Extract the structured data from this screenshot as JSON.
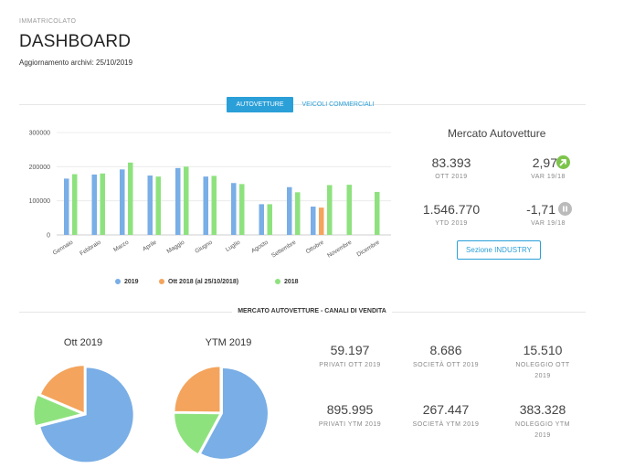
{
  "header": {
    "eyebrow": "IMMATRICOLATO",
    "title": "DASHBOARD",
    "update": "Aggiornamento archivi: 25/10/2019"
  },
  "tabs": {
    "active": "AUTOVETTURE",
    "inactive": "VEICOLI COMMERCIALI"
  },
  "colors": {
    "s2019": "#79aee6",
    "sOtt2018": "#f4a45c",
    "s2018": "#8ee27e",
    "accent": "#2a9fd8",
    "up_icon": "#7dc44a",
    "pause_icon": "#bbbbbb"
  },
  "chart_data": {
    "type": "bar",
    "categories": [
      "Gennaio",
      "Febbraio",
      "Marzo",
      "Aprile",
      "Maggio",
      "Giugno",
      "Luglio",
      "Agosto",
      "Settembre",
      "Ottobre",
      "Novembre",
      "Dicembre"
    ],
    "series": [
      {
        "name": "2019",
        "values": [
          165000,
          177000,
          192000,
          174000,
          196000,
          171000,
          152000,
          90000,
          140000,
          83000,
          null,
          null
        ]
      },
      {
        "name": "Ott 2018 (al 25/10/2018)",
        "values": [
          null,
          null,
          null,
          null,
          null,
          null,
          null,
          null,
          null,
          80000,
          null,
          null
        ]
      },
      {
        "name": "2018",
        "values": [
          178000,
          180000,
          212000,
          171000,
          200000,
          173000,
          149000,
          90000,
          125000,
          146000,
          147000,
          126000
        ]
      }
    ],
    "yticks": [
      "0",
      "100000",
      "200000",
      "300000"
    ],
    "ylim": [
      0,
      300000
    ],
    "grid": true,
    "legend": "bottom"
  },
  "kpi": {
    "title": "Mercato Autovetture",
    "items": [
      {
        "value": "83.393",
        "label": "OTT 2019"
      },
      {
        "value": "2,97",
        "label": "VAR 19/18",
        "icon": "arrow-up-right-icon"
      },
      {
        "value": "1.546.770",
        "label": "YTD 2019"
      },
      {
        "value": "-1,71",
        "label": "VAR 19/18",
        "icon": "pause-icon"
      }
    ],
    "button": "Sezione INDUSTRY"
  },
  "section_title": "MERCATO AUTOVETTURE - CANALI DI VENDITA",
  "pies": [
    {
      "title": "Ott 2019",
      "slices": [
        {
          "name": "Privati",
          "value": 59197
        },
        {
          "name": "Società",
          "value": 8686
        },
        {
          "name": "Noleggio",
          "value": 15510
        }
      ]
    },
    {
      "title": "YTM 2019",
      "slices": [
        {
          "name": "Privati",
          "value": 895995
        },
        {
          "name": "Società",
          "value": 267447
        },
        {
          "name": "Noleggio",
          "value": 383328
        }
      ]
    }
  ],
  "stats": [
    {
      "value": "59.197",
      "label": "PRIVATI OTT 2019"
    },
    {
      "value": "8.686",
      "label": "SOCIETÀ OTT 2019"
    },
    {
      "value": "15.510",
      "label": "NOLEGGIO OTT 2019"
    },
    {
      "value": "895.995",
      "label": "PRIVATI YTM 2019"
    },
    {
      "value": "267.447",
      "label": "SOCIETÀ YTM 2019"
    },
    {
      "value": "383.328",
      "label": "NOLEGGIO YTM 2019"
    }
  ]
}
